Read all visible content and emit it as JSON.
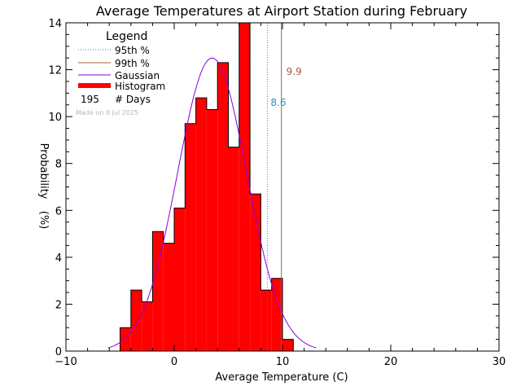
{
  "chart_data": {
    "type": "bar",
    "title": "Average Temperatures at Airport Station during February",
    "xlabel": "Average Temperature (C)",
    "ylabel": "Probability",
    "ylabel_unit": "(%)",
    "xlim": [
      -10,
      30
    ],
    "ylim": [
      0,
      14
    ],
    "xticks": [
      -10,
      0,
      10,
      20,
      30
    ],
    "yticks": [
      0,
      2,
      4,
      6,
      8,
      10,
      12,
      14
    ],
    "histogram": {
      "bin_width": 1,
      "bin_starts": [
        -5,
        -4,
        -3,
        -2,
        -1,
        0,
        1,
        2,
        3,
        4,
        5,
        6,
        7,
        8,
        9,
        10
      ],
      "values": [
        1.0,
        2.6,
        2.1,
        5.1,
        4.6,
        6.1,
        9.7,
        10.8,
        10.3,
        12.3,
        8.7,
        14.0,
        6.7,
        2.6,
        3.1,
        0.5
      ]
    },
    "gaussian": {
      "mean": 3.5,
      "sd": 3.2,
      "peak": 12.5
    },
    "percentile_95": {
      "value": 8.6,
      "label": "8.6"
    },
    "percentile_99": {
      "value": 9.9,
      "label": "9.9"
    },
    "legend": {
      "title": "Legend",
      "items": [
        "95th %",
        "99th %",
        "Gaussian",
        "Histogram"
      ],
      "days_count": "195",
      "days_label": "# Days"
    },
    "credit": "Made on 8 Jul 2025",
    "colors": {
      "histogram": "#ff0000",
      "gaussian": "#8800dd",
      "p95": "#1e90c8",
      "p99": "#a0603a"
    }
  }
}
